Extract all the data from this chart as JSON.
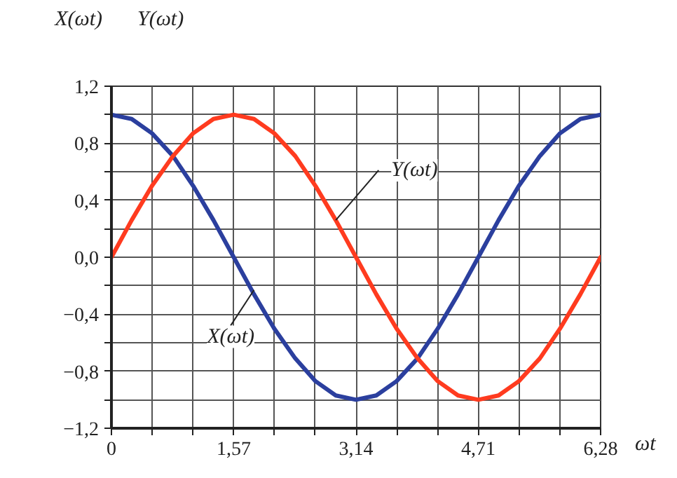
{
  "chart_data": {
    "type": "line",
    "xlabel": "ωt",
    "ylabel": "X(ωt)",
    "x": [
      0,
      0.26,
      0.52,
      0.79,
      1.05,
      1.31,
      1.57,
      1.83,
      2.09,
      2.36,
      2.62,
      2.88,
      3.14,
      3.4,
      3.66,
      3.93,
      4.19,
      4.45,
      4.71,
      4.97,
      5.23,
      5.5,
      5.76,
      6.02,
      6.28
    ],
    "series": [
      {
        "color": "#2b3f9e",
        "values": [
          1,
          0.97,
          0.87,
          0.71,
          0.5,
          0.26,
          0,
          -0.26,
          -0.5,
          -0.71,
          -0.87,
          -0.97,
          -1,
          -0.97,
          -0.87,
          -0.71,
          -0.5,
          -0.26,
          0,
          0.26,
          0.5,
          0.71,
          0.87,
          0.97,
          1
        ]
      },
      {
        "color": "#ff3b1f",
        "values": [
          0,
          0.26,
          0.5,
          0.71,
          0.87,
          0.97,
          1,
          0.97,
          0.87,
          0.71,
          0.5,
          0.26,
          0,
          -0.26,
          -0.5,
          -0.71,
          -0.87,
          -0.97,
          -1,
          -0.97,
          -0.87,
          -0.71,
          -0.5,
          -0.26,
          0
        ]
      }
    ],
    "annotations": [
      "Y(ωt)",
      {
        "text": "X(ωt)",
        "x": 1.83,
        "y": -0.23
      },
      {
        "text": "Y(ωt)",
        "x": 2.88,
        "y": 0.26
      }
    ],
    "xlim": [
      0,
      6.28
    ],
    "ylim": [
      -1.2,
      1.2
    ],
    "xticks": [
      {
        "value": 0,
        "label": "0"
      },
      {
        "value": 0.5233,
        "label": null
      },
      {
        "value": 1.0467,
        "label": null
      },
      {
        "value": 1.57,
        "label": "1,57"
      },
      {
        "value": 2.0933,
        "label": null
      },
      {
        "value": 2.6167,
        "label": null
      },
      {
        "value": 3.14,
        "label": "3,14"
      },
      {
        "value": 3.6633,
        "label": null
      },
      {
        "value": 4.1867,
        "label": null
      },
      {
        "value": 4.71,
        "label": "4,71"
      },
      {
        "value": 5.2333,
        "label": null
      },
      {
        "value": 5.7567,
        "label": null
      },
      {
        "value": 6.28,
        "label": "6,28"
      }
    ],
    "yticks": [
      {
        "value": -1.2,
        "label": "−1,2"
      },
      {
        "value": -1.0,
        "label": null
      },
      {
        "value": -0.8,
        "label": "−0,8"
      },
      {
        "value": -0.6,
        "label": null
      },
      {
        "value": -0.4,
        "label": "−0,4"
      },
      {
        "value": -0.2,
        "label": null
      },
      {
        "value": 0,
        "label": "0,0"
      },
      {
        "value": 0.2,
        "label": null
      },
      {
        "value": 0.4,
        "label": "0,4"
      },
      {
        "value": 0.6,
        "label": null
      },
      {
        "value": 0.8,
        "label": "0,8"
      },
      {
        "value": 1.0,
        "label": null
      },
      {
        "value": 1.2,
        "label": "1,2"
      }
    ],
    "grid": true,
    "marker": "none",
    "line_style": "solid"
  }
}
